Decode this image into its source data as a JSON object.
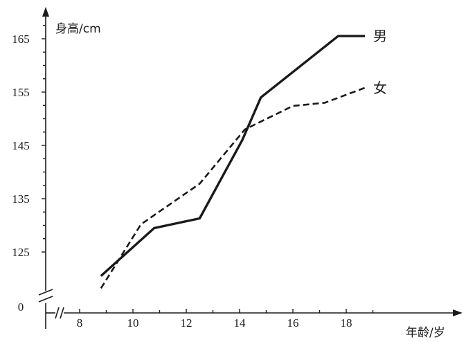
{
  "chart_data": {
    "type": "line",
    "title": "",
    "ylabel": "身高/cm",
    "xlabel": "年龄/岁",
    "x_ticks": [
      8,
      10,
      12,
      14,
      16,
      18
    ],
    "y_ticks": [
      125,
      135,
      145,
      155,
      165
    ],
    "y_origin_label": "0",
    "xlim": [
      7,
      21
    ],
    "ylim": [
      119,
      169
    ],
    "y_axis_break": true,
    "x_axis_break": true,
    "grid": false,
    "series": [
      {
        "name": "男",
        "style": "solid",
        "color": "#1a1a1a",
        "x": [
          8.8,
          10.8,
          12.5,
          14.1,
          14.8,
          17.7,
          18.7
        ],
        "y": [
          120.5,
          129.5,
          131.3,
          146,
          154,
          165.5,
          165.5
        ]
      },
      {
        "name": "女",
        "style": "dashed",
        "color": "#1a1a1a",
        "x": [
          8.8,
          10.3,
          12.5,
          14.2,
          16.0,
          17.2,
          18.7
        ],
        "y": [
          118.2,
          130.2,
          137.8,
          148.0,
          152.4,
          153.0,
          155.8
        ]
      }
    ]
  }
}
